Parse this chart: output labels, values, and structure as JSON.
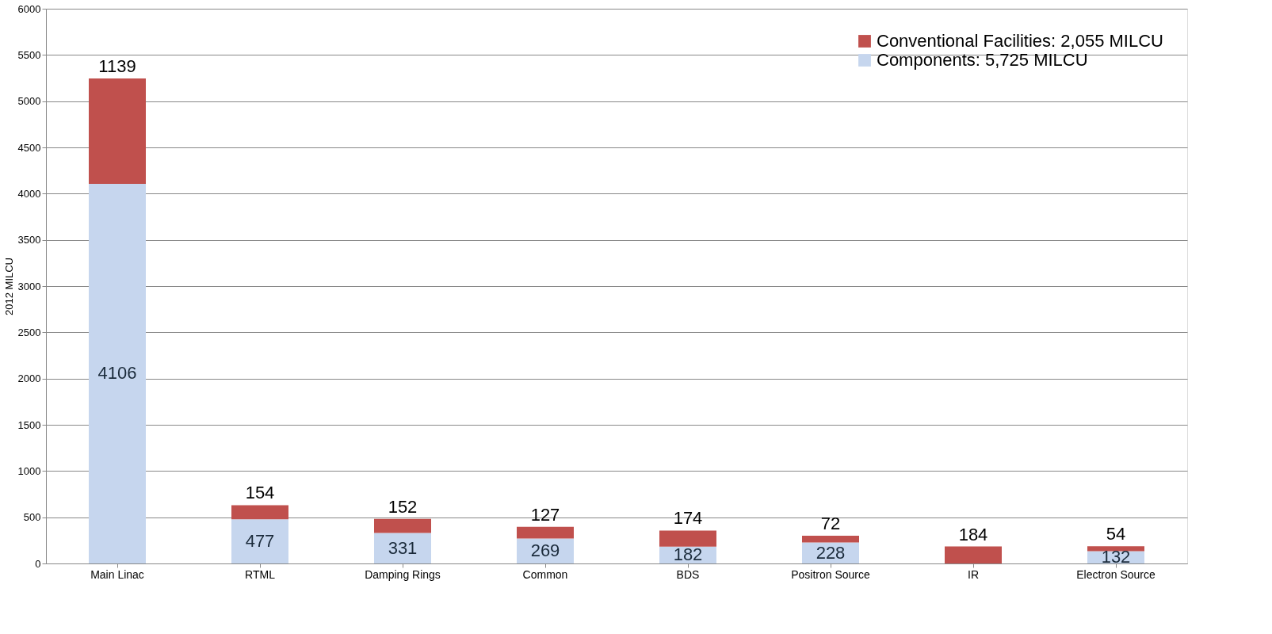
{
  "chart_data": {
    "type": "bar",
    "stacked": true,
    "ylabel": "2012 MILCU",
    "categories": [
      "Main Linac",
      "RTML",
      "Damping Rings",
      "Common",
      "BDS",
      "Positron Source",
      "IR",
      "Electron Source"
    ],
    "series": [
      {
        "name": "Components: 5,725 MILCU",
        "color": "#c6d6ee",
        "values": [
          4106,
          477,
          331,
          269,
          182,
          228,
          null,
          132
        ]
      },
      {
        "name": "Conventional Facilities: 2,055 MILCU",
        "color": "#c0504d",
        "values": [
          1139,
          154,
          152,
          127,
          174,
          72,
          184,
          54
        ]
      }
    ],
    "ylim": [
      0,
      6000
    ],
    "yticks": [
      0,
      500,
      1000,
      1500,
      2000,
      2500,
      3000,
      3500,
      4000,
      4500,
      5000,
      5500,
      6000
    ],
    "grid": "y",
    "legend": "top right",
    "data_labels": true
  }
}
